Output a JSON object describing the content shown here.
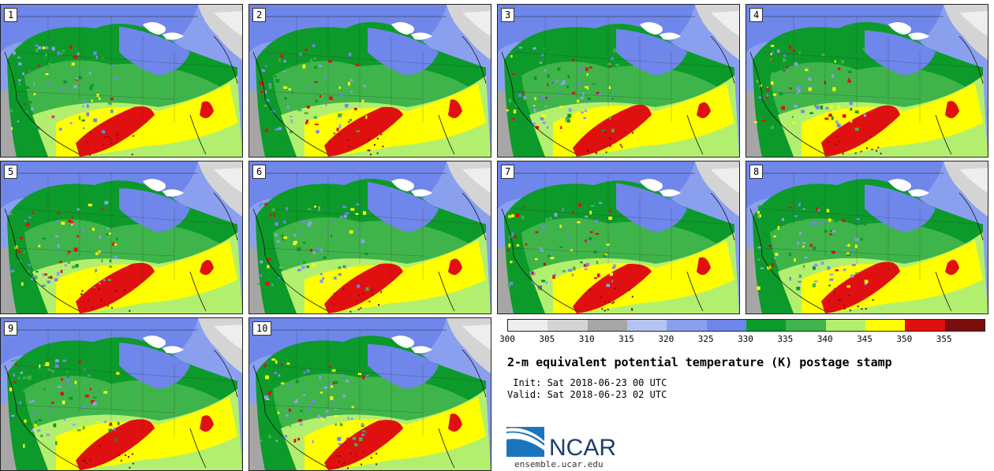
{
  "panels": [
    {
      "label": "1"
    },
    {
      "label": "2"
    },
    {
      "label": "3"
    },
    {
      "label": "4"
    },
    {
      "label": "5"
    },
    {
      "label": "6"
    },
    {
      "label": "7"
    },
    {
      "label": "8"
    },
    {
      "label": "9"
    },
    {
      "label": "10"
    }
  ],
  "colorbar": {
    "colors": [
      "#eeeeee",
      "#d4d4d4",
      "#a6a6a6",
      "#b4c4f2",
      "#8aa0ef",
      "#6f86ea",
      "#0c9a2a",
      "#3fb44a",
      "#b3ef6e",
      "#ffff00",
      "#e01010",
      "#7a0e0e"
    ],
    "ticks": [
      "300",
      "305",
      "310",
      "315",
      "320",
      "325",
      "330",
      "335",
      "340",
      "345",
      "350",
      "355"
    ]
  },
  "title": "2-m equivalent potential temperature (K) postage stamp",
  "init_line": " Init: Sat 2018-06-23 00 UTC",
  "valid_line": "Valid: Sat 2018-06-23 02 UTC",
  "logo_text": "NCAR",
  "site": "ensemble.ucar.edu"
}
